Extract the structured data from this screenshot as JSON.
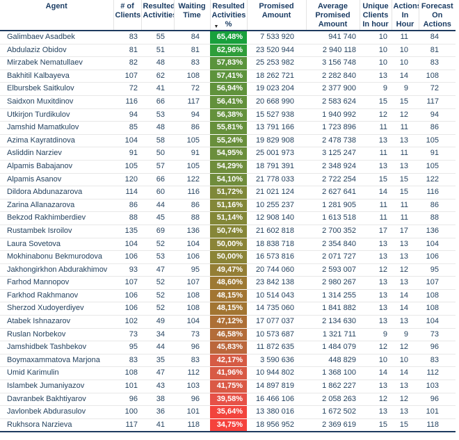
{
  "chart_data": {
    "type": "table",
    "sort": {
      "column_key": "pct",
      "direction": "desc",
      "icon": "▼"
    },
    "columns": [
      {
        "key": "agent",
        "label": "Agent"
      },
      {
        "key": "clients",
        "label": "# of Clients"
      },
      {
        "key": "resulted",
        "label": "Resulted Activities"
      },
      {
        "key": "waiting",
        "label": "Waiting Time"
      },
      {
        "key": "pct",
        "label": "Resulted Activities %",
        "sorted": "desc"
      },
      {
        "key": "promised",
        "label": "Promised Amount"
      },
      {
        "key": "avg",
        "label": "Average Promised Amount"
      },
      {
        "key": "unique",
        "label": "Unique Clients In hour"
      },
      {
        "key": "actions",
        "label": "Actions In Hour"
      },
      {
        "key": "forecast",
        "label": "Forecast On Actions"
      }
    ],
    "rows": [
      {
        "agent": "Galimbaev Asadbek",
        "clients": "83",
        "resulted": "55",
        "waiting": "84",
        "pct": "65,48%",
        "pct_color": "#18A03C",
        "promised": "7 533 920",
        "avg": "941 740",
        "unique": "10",
        "actions": "11",
        "forecast": "84"
      },
      {
        "agent": "Abdulaziz Obidov",
        "clients": "81",
        "resulted": "51",
        "waiting": "81",
        "pct": "62,96%",
        "pct_color": "#2F9E3A",
        "promised": "23 520 944",
        "avg": "2 940 118",
        "unique": "10",
        "actions": "10",
        "forecast": "81"
      },
      {
        "agent": "Mirzabek Nematullaev",
        "clients": "82",
        "resulted": "48",
        "waiting": "83",
        "pct": "57,83%",
        "pct_color": "#5A943C",
        "promised": "25 253 982",
        "avg": "3 156 748",
        "unique": "10",
        "actions": "10",
        "forecast": "83"
      },
      {
        "agent": "Bakhitil Kalbayeva",
        "clients": "107",
        "resulted": "62",
        "waiting": "108",
        "pct": "57,41%",
        "pct_color": "#5D933C",
        "promised": "18 262 721",
        "avg": "2 282 840",
        "unique": "13",
        "actions": "14",
        "forecast": "108"
      },
      {
        "agent": "Elbursbek Saitkulov",
        "clients": "72",
        "resulted": "41",
        "waiting": "72",
        "pct": "56,94%",
        "pct_color": "#60923C",
        "promised": "19 023 204",
        "avg": "2 377 900",
        "unique": "9",
        "actions": "9",
        "forecast": "72"
      },
      {
        "agent": "Saidxon Muxitdinov",
        "clients": "116",
        "resulted": "66",
        "waiting": "117",
        "pct": "56,41%",
        "pct_color": "#63913C",
        "promised": "20 668 990",
        "avg": "2 583 624",
        "unique": "15",
        "actions": "15",
        "forecast": "117"
      },
      {
        "agent": "Utkirjon Turdikulov",
        "clients": "94",
        "resulted": "53",
        "waiting": "94",
        "pct": "56,38%",
        "pct_color": "#64913C",
        "promised": "15 527 938",
        "avg": "1 940 992",
        "unique": "12",
        "actions": "12",
        "forecast": "94"
      },
      {
        "agent": "Jamshid Mamatkulov",
        "clients": "85",
        "resulted": "48",
        "waiting": "86",
        "pct": "55,81%",
        "pct_color": "#66903C",
        "promised": "13 791 166",
        "avg": "1 723 896",
        "unique": "11",
        "actions": "11",
        "forecast": "86"
      },
      {
        "agent": "Azima Kayratdinova",
        "clients": "104",
        "resulted": "58",
        "waiting": "105",
        "pct": "55,24%",
        "pct_color": "#698F3C",
        "promised": "19 829 908",
        "avg": "2 478 738",
        "unique": "13",
        "actions": "13",
        "forecast": "105"
      },
      {
        "agent": "Asliddin Narziev",
        "clients": "91",
        "resulted": "50",
        "waiting": "91",
        "pct": "54,95%",
        "pct_color": "#6B8E3C",
        "promised": "25 001 973",
        "avg": "3 125 247",
        "unique": "11",
        "actions": "11",
        "forecast": "91"
      },
      {
        "agent": "Alpamis Babajanov",
        "clients": "105",
        "resulted": "57",
        "waiting": "105",
        "pct": "54,29%",
        "pct_color": "#6F8D3C",
        "promised": "18 791 391",
        "avg": "2 348 924",
        "unique": "13",
        "actions": "13",
        "forecast": "105"
      },
      {
        "agent": "Alpamis Asanov",
        "clients": "120",
        "resulted": "66",
        "waiting": "122",
        "pct": "54,10%",
        "pct_color": "#708C3C",
        "promised": "21 778 033",
        "avg": "2 722 254",
        "unique": "15",
        "actions": "15",
        "forecast": "122"
      },
      {
        "agent": "Dildora Abdunazarova",
        "clients": "114",
        "resulted": "60",
        "waiting": "116",
        "pct": "51,72%",
        "pct_color": "#7F8839",
        "promised": "21 021 124",
        "avg": "2 627 641",
        "unique": "14",
        "actions": "15",
        "forecast": "116"
      },
      {
        "agent": "Zarina Allanazarova",
        "clients": "86",
        "resulted": "44",
        "waiting": "86",
        "pct": "51,16%",
        "pct_color": "#838738",
        "promised": "10 255 237",
        "avg": "1 281 905",
        "unique": "11",
        "actions": "11",
        "forecast": "86"
      },
      {
        "agent": "Bekzod Rakhimberdiev",
        "clients": "88",
        "resulted": "45",
        "waiting": "88",
        "pct": "51,14%",
        "pct_color": "#838738",
        "promised": "12 908 140",
        "avg": "1 613 518",
        "unique": "11",
        "actions": "11",
        "forecast": "88"
      },
      {
        "agent": "Rustambek Isroilov",
        "clients": "135",
        "resulted": "69",
        "waiting": "136",
        "pct": "50,74%",
        "pct_color": "#868638",
        "promised": "21 602 818",
        "avg": "2 700 352",
        "unique": "17",
        "actions": "17",
        "forecast": "136"
      },
      {
        "agent": "Laura Sovetova",
        "clients": "104",
        "resulted": "52",
        "waiting": "104",
        "pct": "50,00%",
        "pct_color": "#8B8437",
        "promised": "18 838 718",
        "avg": "2 354 840",
        "unique": "13",
        "actions": "13",
        "forecast": "104"
      },
      {
        "agent": "Mokhinabonu Bekmurodova",
        "clients": "106",
        "resulted": "53",
        "waiting": "106",
        "pct": "50,00%",
        "pct_color": "#8B8437",
        "promised": "16 573 816",
        "avg": "2 071 727",
        "unique": "13",
        "actions": "13",
        "forecast": "106"
      },
      {
        "agent": "Jakhongirkhon Abdurakhimov",
        "clients": "93",
        "resulted": "47",
        "waiting": "95",
        "pct": "49,47%",
        "pct_color": "#947E35",
        "promised": "20 744 060",
        "avg": "2 593 007",
        "unique": "12",
        "actions": "12",
        "forecast": "95"
      },
      {
        "agent": "Farhod Mannopov",
        "clients": "107",
        "resulted": "52",
        "waiting": "107",
        "pct": "48,60%",
        "pct_color": "#9D7933",
        "promised": "23 842 138",
        "avg": "2 980 267",
        "unique": "13",
        "actions": "13",
        "forecast": "107"
      },
      {
        "agent": "Farkhod Rakhmanov",
        "clients": "106",
        "resulted": "52",
        "waiting": "108",
        "pct": "48,15%",
        "pct_color": "#A27532",
        "promised": "10 514 043",
        "avg": "1 314 255",
        "unique": "13",
        "actions": "14",
        "forecast": "108"
      },
      {
        "agent": "Sherzod Xudoyerdiyev",
        "clients": "106",
        "resulted": "52",
        "waiting": "108",
        "pct": "48,15%",
        "pct_color": "#A27532",
        "promised": "14 735 060",
        "avg": "1 841 882",
        "unique": "13",
        "actions": "14",
        "forecast": "108"
      },
      {
        "agent": "Atabek Ishnazarov",
        "clients": "102",
        "resulted": "49",
        "waiting": "104",
        "pct": "47,12%",
        "pct_color": "#AD6F36",
        "promised": "17 077 037",
        "avg": "2 134 630",
        "unique": "13",
        "actions": "13",
        "forecast": "104"
      },
      {
        "agent": "Ruslan Norbekov",
        "clients": "73",
        "resulted": "34",
        "waiting": "73",
        "pct": "46,58%",
        "pct_color": "#B36C39",
        "promised": "10 573 687",
        "avg": "1 321 711",
        "unique": "9",
        "actions": "9",
        "forecast": "73"
      },
      {
        "agent": "Jamshidbek Tashbekov",
        "clients": "95",
        "resulted": "44",
        "waiting": "96",
        "pct": "45,83%",
        "pct_color": "#BB673C",
        "promised": "11 872 635",
        "avg": "1 484 079",
        "unique": "12",
        "actions": "12",
        "forecast": "96"
      },
      {
        "agent": "Boymaxammatova Marjona",
        "clients": "83",
        "resulted": "35",
        "waiting": "83",
        "pct": "42,17%",
        "pct_color": "#D65B44",
        "promised": "3 590 636",
        "avg": "448 829",
        "unique": "10",
        "actions": "10",
        "forecast": "83"
      },
      {
        "agent": "Umid Karimulin",
        "clients": "108",
        "resulted": "47",
        "waiting": "112",
        "pct": "41,96%",
        "pct_color": "#D85A45",
        "promised": "10 944 802",
        "avg": "1 368 100",
        "unique": "14",
        "actions": "14",
        "forecast": "112"
      },
      {
        "agent": "Islambek Jumaniyazov",
        "clients": "101",
        "resulted": "43",
        "waiting": "103",
        "pct": "41,75%",
        "pct_color": "#DA5945",
        "promised": "14 897 819",
        "avg": "1 862 227",
        "unique": "13",
        "actions": "13",
        "forecast": "103"
      },
      {
        "agent": "Davranbek Bakhtiyarov",
        "clients": "96",
        "resulted": "38",
        "waiting": "96",
        "pct": "39,58%",
        "pct_color": "#E65147",
        "promised": "16 466 106",
        "avg": "2 058 263",
        "unique": "12",
        "actions": "12",
        "forecast": "96"
      },
      {
        "agent": "Javlonbek Abdurasulov",
        "clients": "100",
        "resulted": "36",
        "waiting": "101",
        "pct": "35,64%",
        "pct_color": "#F2443D",
        "promised": "13 380 016",
        "avg": "1 672 502",
        "unique": "13",
        "actions": "13",
        "forecast": "101"
      },
      {
        "agent": "Rukhsora Narzieva",
        "clients": "117",
        "resulted": "41",
        "waiting": "118",
        "pct": "34,75%",
        "pct_color": "#F5423C",
        "promised": "18 956 952",
        "avg": "2 369 619",
        "unique": "15",
        "actions": "15",
        "forecast": "118"
      }
    ]
  },
  "colors": {
    "header_text": "#1B3C63",
    "body_text": "#24425F",
    "header_border": "#1D3A5F",
    "row_border": "#E8E8E8",
    "pct_text": "#FFFFFF",
    "pct_gradient_max": "#18A03C",
    "pct_gradient_mid": "#8B8437",
    "pct_gradient_min": "#F5423C"
  }
}
